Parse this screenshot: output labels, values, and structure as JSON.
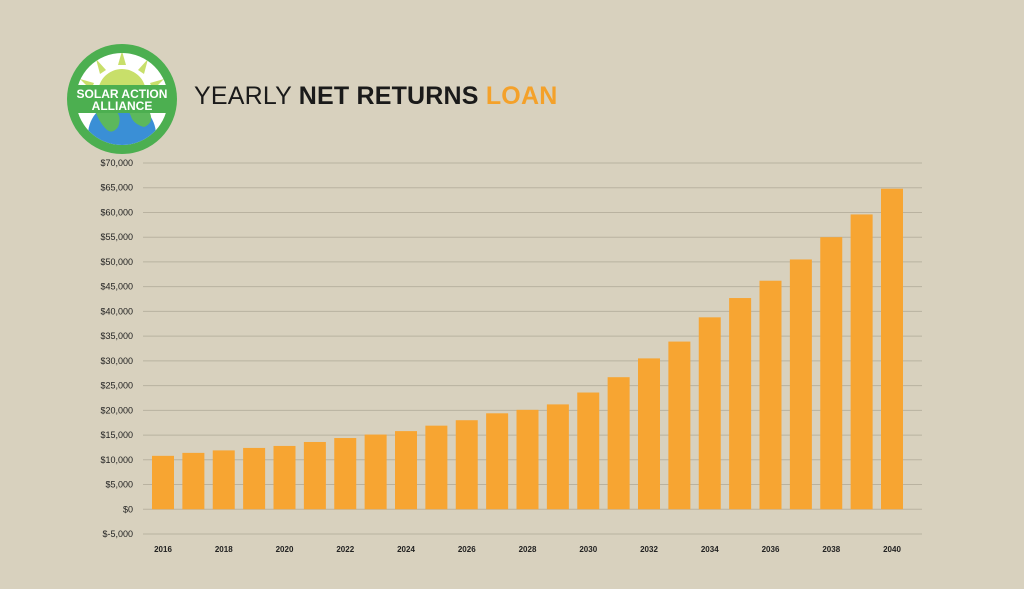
{
  "logo": {
    "text_line1": "SOLAR ACTION",
    "text_line2": "ALLIANCE",
    "ring_color": "#4caf50",
    "sun_color": "#c8df6a",
    "globe_color": "#3a8fd6"
  },
  "title": {
    "part1": "YEARLY ",
    "part2": "NET RETURNS",
    "part3": " LOAN",
    "accent_color": "#f4a12a"
  },
  "chart_data": {
    "type": "bar",
    "bar_color": "#f7a532",
    "grid": true,
    "ylim": [
      -5000,
      70000
    ],
    "ytick_step": 5000,
    "ytick_labels": [
      "$-5,000",
      "$0",
      "$5,000",
      "$10,000",
      "$15,000",
      "$20,000",
      "$25,000",
      "$30,000",
      "$35,000",
      "$40,000",
      "$45,000",
      "$50,000",
      "$55,000",
      "$60,000",
      "$65,000",
      "$70,000"
    ],
    "categories": [
      2016,
      2017,
      2018,
      2019,
      2020,
      2021,
      2022,
      2023,
      2024,
      2025,
      2026,
      2027,
      2028,
      2029,
      2030,
      2031,
      2032,
      2033,
      2034,
      2035,
      2036,
      2037,
      2038,
      2039,
      2040
    ],
    "xtick_labels": [
      "2016",
      "",
      "2018",
      "",
      "2020",
      "",
      "2022",
      "",
      "2024",
      "",
      "2026",
      "",
      "2028",
      "",
      "2030",
      "",
      "2032",
      "",
      "2034",
      "",
      "2036",
      "",
      "2038",
      "",
      "2040"
    ],
    "values": [
      10800,
      11400,
      11900,
      12400,
      12800,
      13600,
      14400,
      15100,
      15800,
      16900,
      18000,
      19400,
      20100,
      21200,
      23600,
      26700,
      30500,
      33900,
      38800,
      42700,
      46200,
      50500,
      55000,
      59600,
      64800
    ]
  }
}
